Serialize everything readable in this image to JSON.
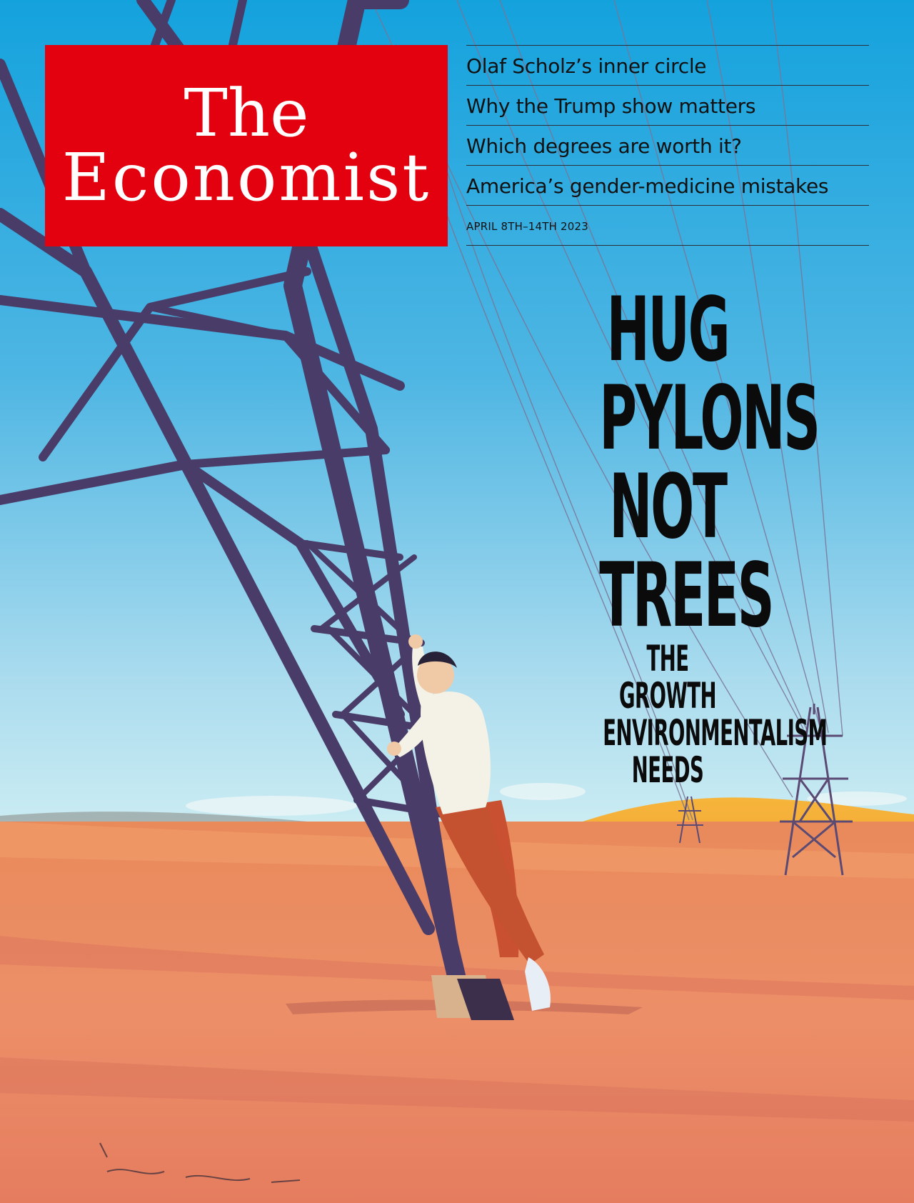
{
  "masthead": {
    "line1": "The",
    "line2": "Economist"
  },
  "teasers": [
    "Olaf Scholz’s inner circle",
    "Why the Trump show matters",
    "Which degrees are worth it?",
    "America’s gender-medicine mistakes"
  ],
  "dateline": "APRIL 8TH–14TH 2023",
  "cover_story": {
    "headline": [
      "HUG",
      "PYLONS",
      "NOT",
      "TREES"
    ],
    "subheadline": [
      "THE GROWTH",
      "ENVIRONMENTALISM",
      "NEEDS"
    ]
  },
  "colors": {
    "masthead_red": "#e3000f",
    "sky": "#2aa6dd",
    "desert": "#e8845e",
    "pylon": "#4b3f66"
  }
}
